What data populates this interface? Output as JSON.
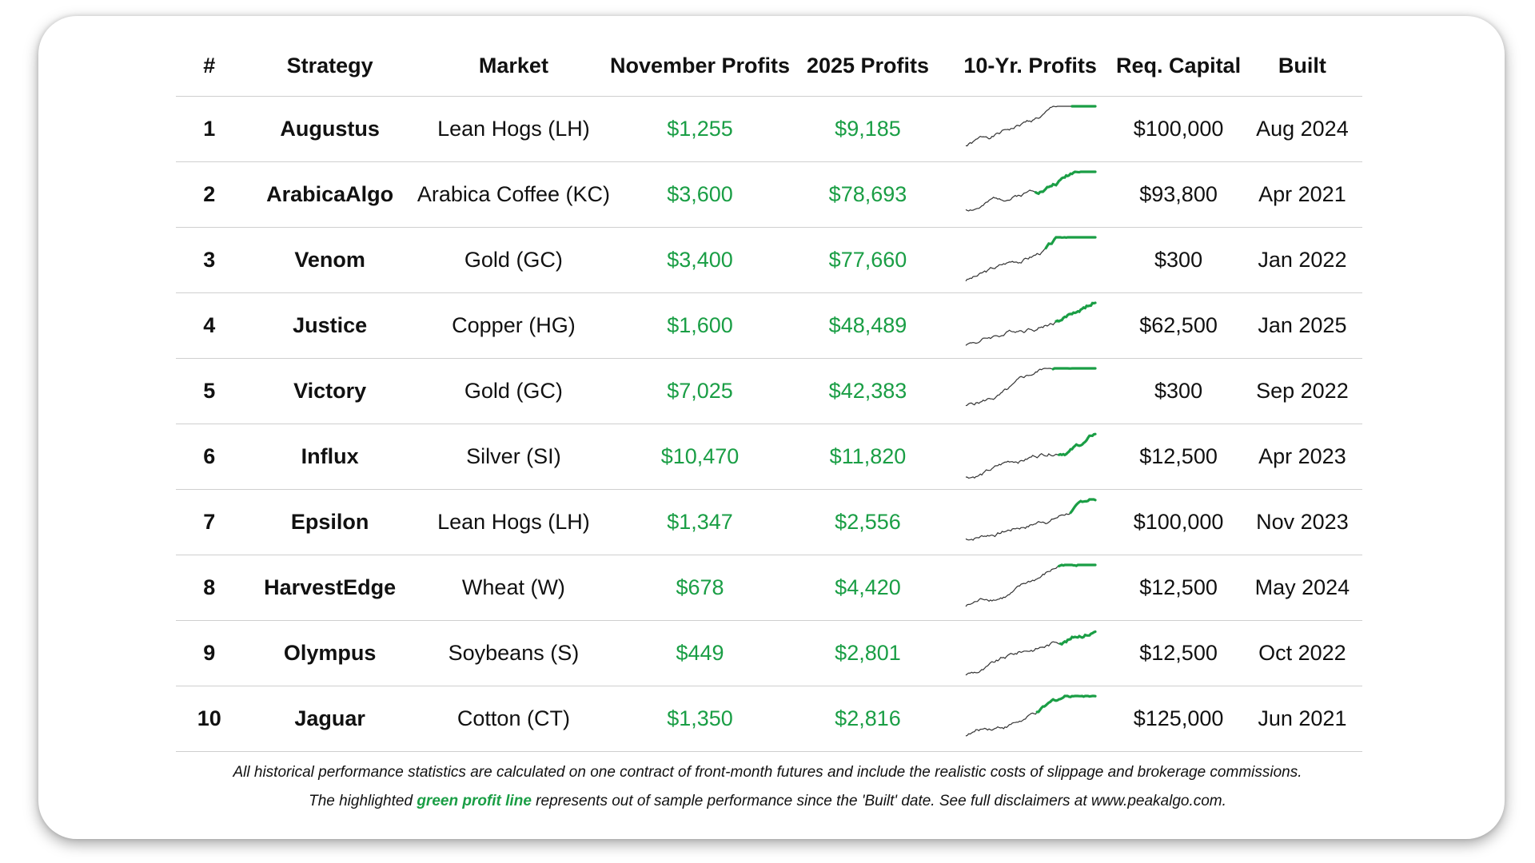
{
  "table": {
    "headers": [
      "#",
      "Strategy",
      "Market",
      "November Profits",
      "2025 Profits",
      "10-Yr. Profits",
      "Req. Capital",
      "Built"
    ],
    "rows": [
      {
        "rank": "1",
        "strategy": "Augustus",
        "market": "Lean Hogs (LH)",
        "november": "$1,255",
        "ytd": "$9,185",
        "capital": "$100,000",
        "built": "Aug 2024"
      },
      {
        "rank": "2",
        "strategy": "ArabicaAlgo",
        "market": "Arabica Coffee (KC)",
        "november": "$3,600",
        "ytd": "$78,693",
        "capital": "$93,800",
        "built": "Apr 2021"
      },
      {
        "rank": "3",
        "strategy": "Venom",
        "market": "Gold (GC)",
        "november": "$3,400",
        "ytd": "$77,660",
        "capital": "$300",
        "built": "Jan 2022"
      },
      {
        "rank": "4",
        "strategy": "Justice",
        "market": "Copper (HG)",
        "november": "$1,600",
        "ytd": "$48,489",
        "capital": "$62,500",
        "built": "Jan 2025"
      },
      {
        "rank": "5",
        "strategy": "Victory",
        "market": "Gold (GC)",
        "november": "$7,025",
        "ytd": "$42,383",
        "capital": "$300",
        "built": "Sep 2022"
      },
      {
        "rank": "6",
        "strategy": "Influx",
        "market": "Silver (SI)",
        "november": "$10,470",
        "ytd": "$11,820",
        "capital": "$12,500",
        "built": "Apr 2023"
      },
      {
        "rank": "7",
        "strategy": "Epsilon",
        "market": "Lean Hogs (LH)",
        "november": "$1,347",
        "ytd": "$2,556",
        "capital": "$100,000",
        "built": "Nov 2023"
      },
      {
        "rank": "8",
        "strategy": "HarvestEdge",
        "market": "Wheat (W)",
        "november": "$678",
        "ytd": "$4,420",
        "capital": "$12,500",
        "built": "May 2024"
      },
      {
        "rank": "9",
        "strategy": "Olympus",
        "market": "Soybeans (S)",
        "november": "$449",
        "ytd": "$2,801",
        "capital": "$12,500",
        "built": "Oct 2022"
      },
      {
        "rank": "10",
        "strategy": "Jaguar",
        "market": "Cotton (CT)",
        "november": "$1,350",
        "ytd": "$2,816",
        "capital": "$125,000",
        "built": "Jun 2021"
      }
    ]
  },
  "footer": {
    "line1": "All historical performance statistics are calculated on one contract of front-month futures and include the realistic costs of slippage and brokerage commissions.",
    "line2_pre": "The highlighted",
    "line2_highlight": "green profit line",
    "line2_post": "represents out of sample performance since the 'Built' date. See full disclaimers at www.peakalgo.com."
  },
  "colors": {
    "profit_green": "#1a9e45",
    "in_sample_line": "#333333",
    "divider": "#cfcfcf"
  }
}
